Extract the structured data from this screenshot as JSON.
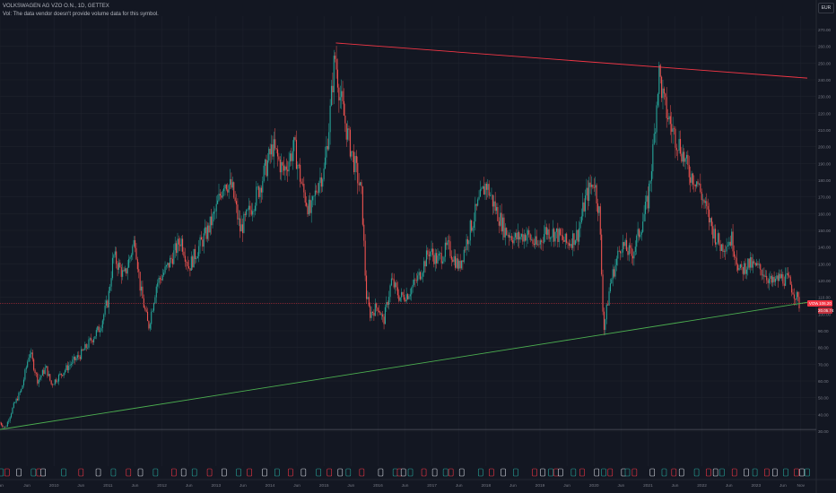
{
  "legend": {
    "symbol": "VOLKSWAGEN AG VZO O.N., 1D, GETTEX",
    "volume_note": "Vol: The data vendor doesn't provide volume data for this symbol."
  },
  "currency": "EUR",
  "price_badge": {
    "ticker": "VOW3",
    "price": "106.20",
    "change": "20.05.74"
  },
  "colors": {
    "background": "#131722",
    "up": "#26a69a",
    "down": "#ef5350",
    "resistance": "#f23645",
    "support": "#4caf50",
    "grid": "#1e222d",
    "axis_text": "#787b86"
  },
  "chart_data": {
    "type": "candlestick",
    "title": "",
    "xlabel": "",
    "ylabel": "",
    "ylim": [
      20,
      270
    ],
    "y_ticks": [
      30,
      40,
      50,
      60,
      70,
      80,
      90,
      100,
      110,
      120,
      130,
      140,
      150,
      160,
      170,
      180,
      190,
      200,
      210,
      220,
      230,
      240,
      250,
      260,
      270
    ],
    "y_tick_labels": [
      "30.00",
      "40.00",
      "50.00",
      "60.00",
      "70.00",
      "80.00",
      "90.00",
      "100.00",
      "110.00",
      "120.00",
      "130.00",
      "140.00",
      "150.00",
      "160.00",
      "170.00",
      "180.00",
      "190.00",
      "200.00",
      "210.00",
      "220.00",
      "230.00",
      "240.00",
      "250.00",
      "260.00",
      "270.00"
    ],
    "x_range": [
      2009.0,
      2023.95
    ],
    "x_ticks": [
      {
        "t": 2009.0,
        "label": "Jan"
      },
      {
        "t": 2009.5,
        "label": "Jun"
      },
      {
        "t": 2010.0,
        "label": "2010"
      },
      {
        "t": 2010.5,
        "label": "Jun"
      },
      {
        "t": 2011.0,
        "label": "2011"
      },
      {
        "t": 2011.5,
        "label": "Jun"
      },
      {
        "t": 2012.0,
        "label": "2012"
      },
      {
        "t": 2012.5,
        "label": "Jun"
      },
      {
        "t": 2013.0,
        "label": "2013"
      },
      {
        "t": 2013.5,
        "label": "Jun"
      },
      {
        "t": 2014.0,
        "label": "2014"
      },
      {
        "t": 2014.5,
        "label": "Jun"
      },
      {
        "t": 2015.0,
        "label": "2015"
      },
      {
        "t": 2015.5,
        "label": "Jun"
      },
      {
        "t": 2016.0,
        "label": "2016"
      },
      {
        "t": 2016.5,
        "label": "Jun"
      },
      {
        "t": 2017.0,
        "label": "2017"
      },
      {
        "t": 2017.5,
        "label": "Jun"
      },
      {
        "t": 2018.0,
        "label": "2018"
      },
      {
        "t": 2018.5,
        "label": "Jun"
      },
      {
        "t": 2019.0,
        "label": "2019"
      },
      {
        "t": 2019.5,
        "label": "Jun"
      },
      {
        "t": 2020.0,
        "label": "2020"
      },
      {
        "t": 2020.5,
        "label": "Jun"
      },
      {
        "t": 2021.0,
        "label": "2021"
      },
      {
        "t": 2021.5,
        "label": "Jun"
      },
      {
        "t": 2022.0,
        "label": "2022"
      },
      {
        "t": 2022.5,
        "label": "Jun"
      },
      {
        "t": 2023.0,
        "label": "2023"
      },
      {
        "t": 2023.5,
        "label": "Jun"
      },
      {
        "t": 2023.83,
        "label": "Nov"
      }
    ],
    "price_path": [
      [
        2009.0,
        35
      ],
      [
        2009.1,
        32
      ],
      [
        2009.25,
        45
      ],
      [
        2009.4,
        55
      ],
      [
        2009.55,
        78
      ],
      [
        2009.7,
        60
      ],
      [
        2009.85,
        68
      ],
      [
        2009.95,
        58
      ],
      [
        2010.1,
        63
      ],
      [
        2010.3,
        70
      ],
      [
        2010.5,
        76
      ],
      [
        2010.7,
        85
      ],
      [
        2010.85,
        92
      ],
      [
        2011.0,
        108
      ],
      [
        2011.1,
        135
      ],
      [
        2011.3,
        122
      ],
      [
        2011.5,
        145
      ],
      [
        2011.6,
        115
      ],
      [
        2011.75,
        92
      ],
      [
        2011.9,
        118
      ],
      [
        2012.1,
        128
      ],
      [
        2012.35,
        145
      ],
      [
        2012.5,
        128
      ],
      [
        2012.65,
        138
      ],
      [
        2012.85,
        150
      ],
      [
        2013.0,
        162
      ],
      [
        2013.15,
        180
      ],
      [
        2013.3,
        175
      ],
      [
        2013.45,
        150
      ],
      [
        2013.6,
        160
      ],
      [
        2013.8,
        175
      ],
      [
        2013.95,
        190
      ],
      [
        2014.05,
        200
      ],
      [
        2014.25,
        185
      ],
      [
        2014.45,
        200
      ],
      [
        2014.6,
        175
      ],
      [
        2014.75,
        160
      ],
      [
        2014.9,
        180
      ],
      [
        2015.0,
        185
      ],
      [
        2015.1,
        215
      ],
      [
        2015.2,
        255
      ],
      [
        2015.3,
        230
      ],
      [
        2015.45,
        205
      ],
      [
        2015.6,
        185
      ],
      [
        2015.7,
        170
      ],
      [
        2015.78,
        112
      ],
      [
        2015.85,
        100
      ],
      [
        2016.0,
        105
      ],
      [
        2016.1,
        95
      ],
      [
        2016.25,
        120
      ],
      [
        2016.4,
        110
      ],
      [
        2016.55,
        112
      ],
      [
        2016.75,
        122
      ],
      [
        2016.95,
        138
      ],
      [
        2017.1,
        132
      ],
      [
        2017.3,
        140
      ],
      [
        2017.5,
        128
      ],
      [
        2017.7,
        150
      ],
      [
        2017.85,
        165
      ],
      [
        2018.0,
        178
      ],
      [
        2018.15,
        165
      ],
      [
        2018.35,
        150
      ],
      [
        2018.55,
        145
      ],
      [
        2018.75,
        148
      ],
      [
        2018.95,
        140
      ],
      [
        2019.1,
        150
      ],
      [
        2019.3,
        148
      ],
      [
        2019.5,
        142
      ],
      [
        2019.7,
        148
      ],
      [
        2019.85,
        170
      ],
      [
        2020.0,
        180
      ],
      [
        2020.1,
        160
      ],
      [
        2020.18,
        90
      ],
      [
        2020.3,
        118
      ],
      [
        2020.5,
        142
      ],
      [
        2020.7,
        135
      ],
      [
        2020.85,
        150
      ],
      [
        2021.0,
        168
      ],
      [
        2021.1,
        200
      ],
      [
        2021.2,
        245
      ],
      [
        2021.3,
        225
      ],
      [
        2021.45,
        210
      ],
      [
        2021.6,
        200
      ],
      [
        2021.75,
        185
      ],
      [
        2021.9,
        180
      ],
      [
        2022.05,
        165
      ],
      [
        2022.2,
        150
      ],
      [
        2022.35,
        140
      ],
      [
        2022.55,
        145
      ],
      [
        2022.7,
        125
      ],
      [
        2022.85,
        130
      ],
      [
        2023.0,
        128
      ],
      [
        2023.15,
        125
      ],
      [
        2023.3,
        118
      ],
      [
        2023.45,
        122
      ],
      [
        2023.6,
        120
      ],
      [
        2023.75,
        110
      ],
      [
        2023.8,
        106
      ]
    ],
    "trendlines": [
      {
        "name": "resistance",
        "from": [
          2015.22,
          262
        ],
        "to": [
          2023.95,
          241
        ]
      },
      {
        "name": "support",
        "from": [
          2009.0,
          31
        ],
        "to": [
          2023.95,
          107
        ]
      }
    ],
    "horizontal_lines": [
      {
        "name": "current",
        "y": 106.2
      },
      {
        "name": "floor",
        "y": 31
      }
    ],
    "event_markers": [
      2009.02,
      2009.13,
      2009.35,
      2009.62,
      2009.72,
      2009.8,
      2010.18,
      2010.5,
      2010.82,
      2011.1,
      2011.38,
      2011.6,
      2011.88,
      2012.22,
      2012.4,
      2012.6,
      2012.88,
      2013.15,
      2013.42,
      2013.62,
      2013.9,
      2014.13,
      2014.38,
      2014.62,
      2014.9,
      2015.1,
      2015.3,
      2015.45,
      2015.7,
      2016.05,
      2016.32,
      2016.4,
      2016.47,
      2016.6,
      2016.85,
      2017.05,
      2017.25,
      2017.35,
      2017.55,
      2017.9,
      2018.1,
      2018.32,
      2018.55,
      2018.9,
      2019.05,
      2019.2,
      2019.3,
      2019.38,
      2019.62,
      2019.78,
      2020.05,
      2020.18,
      2020.3,
      2020.55,
      2020.62,
      2020.75,
      2021.08,
      2021.3,
      2021.48,
      2021.62,
      2021.9,
      2022.12,
      2022.25,
      2022.37,
      2022.6,
      2022.82,
      2022.98,
      2023.2,
      2023.35,
      2023.55,
      2023.75,
      2023.85,
      2023.95
    ]
  }
}
